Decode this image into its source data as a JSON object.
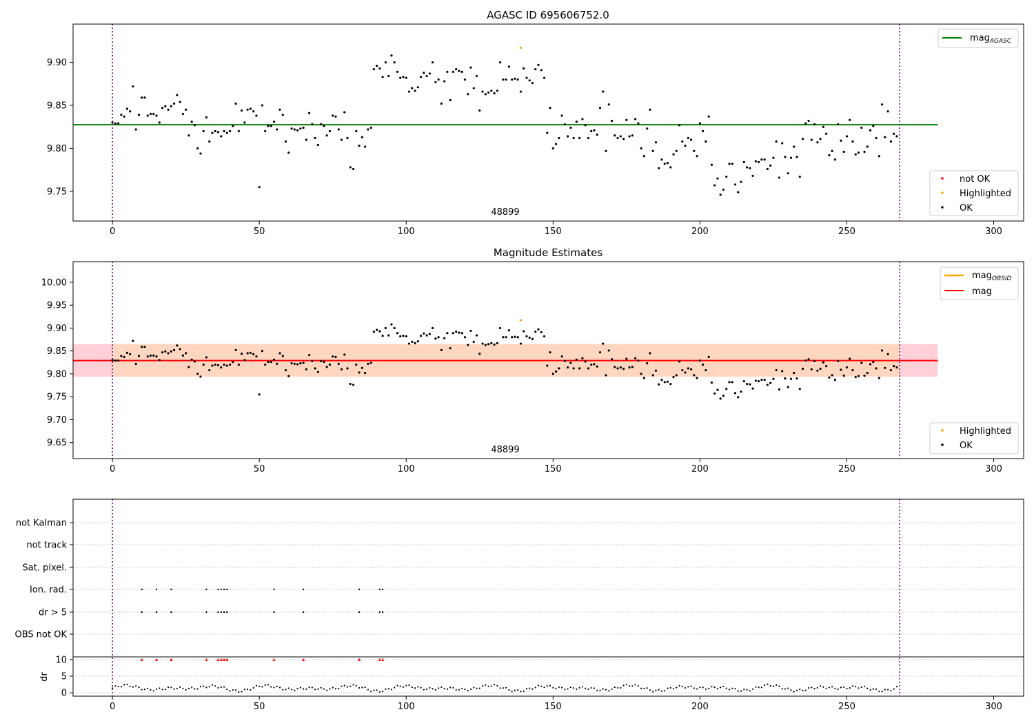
{
  "chart_data": [
    {
      "type": "scatter",
      "title": "AGASC ID 695606752.0",
      "annotation": "48899",
      "xlim": [
        -13.4,
        310.2
      ],
      "ylim": [
        9.7155,
        9.9445
      ],
      "xticks": [
        0,
        50,
        100,
        150,
        200,
        250,
        300
      ],
      "yticks": [
        9.75,
        9.8,
        9.85,
        9.9
      ],
      "ytick_labels": [
        "9.75",
        "9.80",
        "9.85",
        "9.90"
      ],
      "grid": false,
      "vlines": [
        0,
        268
      ],
      "hline": {
        "name_base": "mag",
        "name_sub": "AGASC",
        "y": 9.8275,
        "color": "#008000"
      },
      "legend_top": [
        "mag_AGASC"
      ],
      "legend_bottom": [
        "not OK",
        "Highlighted",
        "OK"
      ],
      "legend_colors": {
        "not OK": "#ff0000",
        "Highlighted": "#ffa500",
        "OK": "#000000"
      }
    },
    {
      "type": "scatter",
      "title": "Magnitude Estimates",
      "annotation": "48899",
      "xlim": [
        -13.4,
        310.2
      ],
      "ylim": [
        9.615,
        10.045
      ],
      "xticks": [
        0,
        50,
        100,
        150,
        200,
        250,
        300
      ],
      "yticks": [
        9.65,
        9.7,
        9.75,
        9.8,
        9.85,
        9.9,
        9.95,
        10.0
      ],
      "ytick_labels": [
        "9.65",
        "9.70",
        "9.75",
        "9.80",
        "9.85",
        "9.90",
        "9.95",
        "10.00"
      ],
      "grid": false,
      "vlines": [
        0,
        268
      ],
      "mag_line": {
        "name": "mag",
        "y": 9.829,
        "color": "#ff0000"
      },
      "mag_obsid": {
        "name_base": "mag",
        "name_sub": "OBSID",
        "color": "#ffa500"
      },
      "bands": [
        {
          "x": [
            -13.4,
            281
          ],
          "y": [
            9.794,
            9.865
          ],
          "color": "#ffc0cb"
        },
        {
          "x": [
            0,
            268
          ],
          "y": [
            9.794,
            9.865
          ],
          "color": "#ffdab9"
        }
      ],
      "legend_top": [
        "mag_OBSID",
        "mag"
      ],
      "legend_bottom": [
        "Highlighted",
        "OK"
      ]
    },
    {
      "type": "scatter",
      "title": "",
      "xlim": [
        -13.4,
        310.2
      ],
      "xticks": [
        0,
        50,
        100,
        150,
        200,
        250,
        300
      ],
      "vlines": [
        0,
        268
      ],
      "flag_rows": [
        "not Kalman",
        "not track",
        "Sat. pixel.",
        "Ion. rad.",
        "dr > 5",
        "OBS not OK"
      ],
      "flag_points": {
        "Ion. rad.": [
          10,
          15,
          20,
          32,
          36,
          37,
          38,
          39,
          55,
          65,
          84,
          91,
          92
        ],
        "dr > 5": [
          10,
          15,
          20,
          32,
          36,
          37,
          38,
          39,
          55,
          65,
          84,
          91,
          92
        ]
      },
      "dr_axis": {
        "ylabel": "dr",
        "yticks": [
          0,
          5,
          10
        ],
        "ylim": [
          -1,
          10.8
        ],
        "clip_value": 10
      }
    }
  ]
}
